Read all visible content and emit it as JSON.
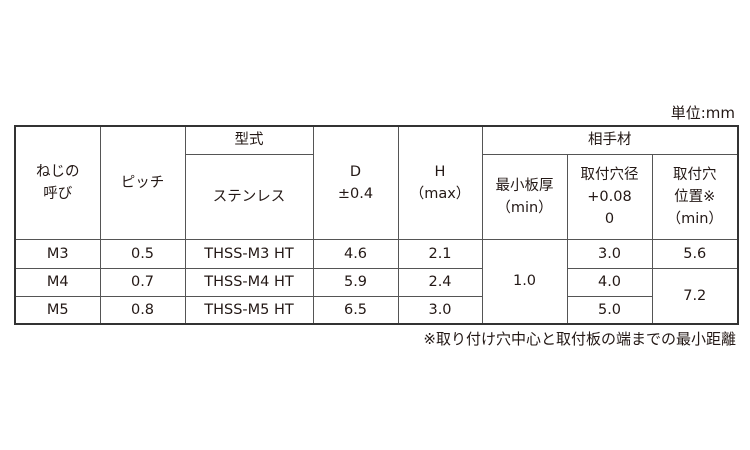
{
  "unit_label": "単位:mm",
  "headers": {
    "thread": [
      "ねじの",
      "呼び"
    ],
    "pitch": "ピッチ",
    "model": "型式",
    "model_sub": "ステンレス",
    "d": [
      "D",
      "±0.4"
    ],
    "h": [
      "H",
      "（max）"
    ],
    "mating": "相手材",
    "min_thickness": [
      "最小板厚",
      "（min）"
    ],
    "hole_dia": [
      "取付穴径",
      "+0.08",
      "0"
    ],
    "hole_pos": [
      "取付穴",
      "位置※",
      "（min）"
    ]
  },
  "rows": [
    {
      "thread": "M3",
      "pitch": "0.5",
      "model": "THSS-M3 HT",
      "d": "4.6",
      "h": "2.1",
      "hole_dia": "3.0",
      "hole_pos": "5.6"
    },
    {
      "thread": "M4",
      "pitch": "0.7",
      "model": "THSS-M4 HT",
      "d": "5.9",
      "h": "2.4",
      "hole_dia": "4.0",
      "hole_pos": "7.2"
    },
    {
      "thread": "M5",
      "pitch": "0.8",
      "model": "THSS-M5 HT",
      "d": "6.5",
      "h": "3.0",
      "hole_dia": "5.0"
    }
  ],
  "min_thickness_value": "1.0",
  "footnote": "※取り付け穴中心と取付板の端までの最小距離"
}
